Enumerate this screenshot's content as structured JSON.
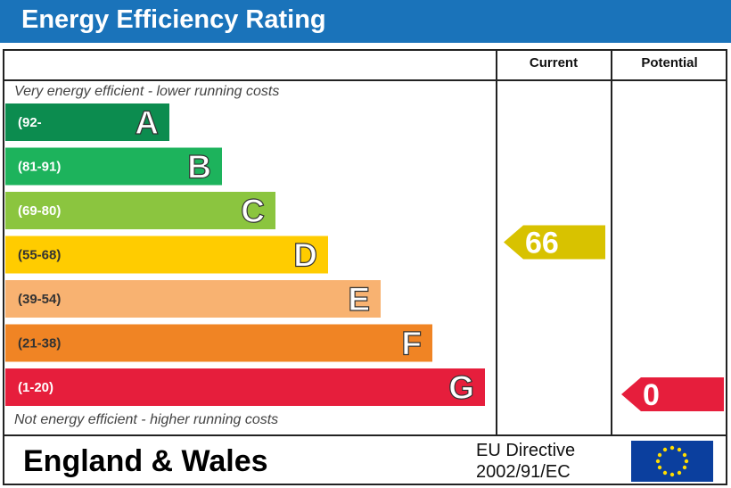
{
  "header": {
    "title": "Energy Efficiency Rating"
  },
  "columns": {
    "current": "Current",
    "potential": "Potential"
  },
  "captions": {
    "top": "Very energy efficient - lower running costs",
    "bottom": "Not energy efficient - higher running costs"
  },
  "footer": {
    "region": "England & Wales",
    "directive_line1": "EU Directive",
    "directive_line2": "2002/91/EC"
  },
  "colors": {
    "title_bar": "#1a73ba",
    "A": "#0c8c4f",
    "B": "#1db35c",
    "C": "#8bc53f",
    "D": "#ffcc00",
    "E": "#f8b271",
    "F": "#f08424",
    "G": "#e61e3c",
    "current_arrow": "#d8c200",
    "potential_arrow": "#e61e3c"
  },
  "chart_data": {
    "type": "bar",
    "title": "Energy Efficiency Rating",
    "categories": [
      "A",
      "B",
      "C",
      "D",
      "E",
      "F",
      "G"
    ],
    "band_ranges": [
      "(92-",
      "(81-91)",
      "(69-80)",
      "(55-68)",
      "(39-54)",
      "(21-38)",
      "(1-20)"
    ],
    "bands": [
      {
        "letter": "A",
        "range": "(92-"
      },
      {
        "letter": "B",
        "range": "(81-91)"
      },
      {
        "letter": "C",
        "range": "(69-80)"
      },
      {
        "letter": "D",
        "range": "(55-68)"
      },
      {
        "letter": "E",
        "range": "(39-54)"
      },
      {
        "letter": "F",
        "range": "(21-38)"
      },
      {
        "letter": "G",
        "range": "(1-20)"
      }
    ],
    "current": {
      "value": 66,
      "band": "D"
    },
    "potential": {
      "value": 0,
      "band": "G"
    }
  }
}
